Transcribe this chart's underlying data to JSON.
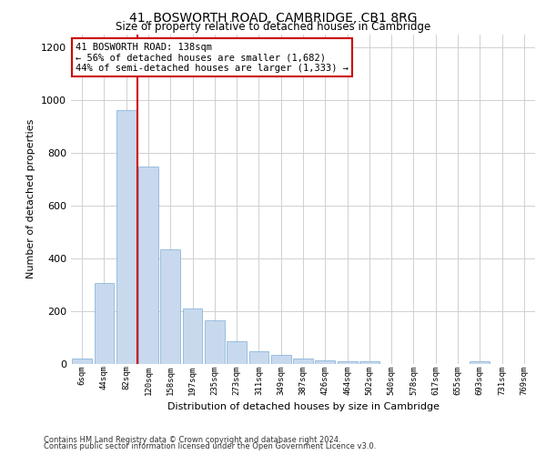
{
  "title1": "41, BOSWORTH ROAD, CAMBRIDGE, CB1 8RG",
  "title2": "Size of property relative to detached houses in Cambridge",
  "xlabel": "Distribution of detached houses by size in Cambridge",
  "ylabel": "Number of detached properties",
  "categories": [
    "6sqm",
    "44sqm",
    "82sqm",
    "120sqm",
    "158sqm",
    "197sqm",
    "235sqm",
    "273sqm",
    "311sqm",
    "349sqm",
    "387sqm",
    "426sqm",
    "464sqm",
    "502sqm",
    "540sqm",
    "578sqm",
    "617sqm",
    "655sqm",
    "693sqm",
    "731sqm",
    "769sqm"
  ],
  "values": [
    22,
    308,
    963,
    748,
    435,
    210,
    165,
    85,
    50,
    35,
    22,
    15,
    12,
    10,
    0,
    0,
    0,
    0,
    10,
    0,
    0
  ],
  "bar_color": "#c8d9ee",
  "bar_edge_color": "#7aadd4",
  "vline_color": "#cc0000",
  "annotation_text": "41 BOSWORTH ROAD: 138sqm\n← 56% of detached houses are smaller (1,682)\n44% of semi-detached houses are larger (1,333) →",
  "annotation_box_color": "#ffffff",
  "annotation_box_edge": "#cc0000",
  "footnote1": "Contains HM Land Registry data © Crown copyright and database right 2024.",
  "footnote2": "Contains public sector information licensed under the Open Government Licence v3.0.",
  "ylim": [
    0,
    1250
  ],
  "yticks": [
    0,
    200,
    400,
    600,
    800,
    1000,
    1200
  ],
  "background_color": "#ffffff",
  "grid_color": "#d0d0d0",
  "vline_bar_index": 3
}
